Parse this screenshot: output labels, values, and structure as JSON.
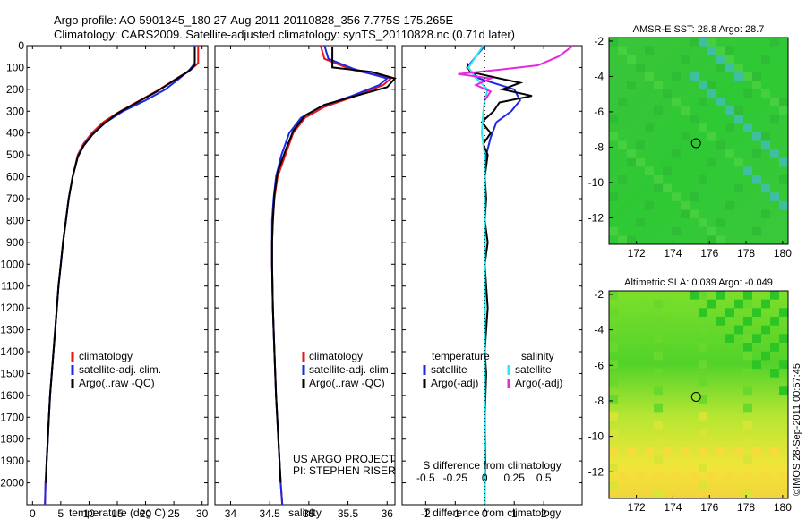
{
  "header": {
    "line1": "Argo profile: AO 5901345_180 27-Aug-2011 20110828_356 7.775S 175.265E",
    "line2": "Climatology: CARS2009. Satellite-adjusted climatology: synTS_20110828.nc (0.71d later)"
  },
  "stamp": "©IMOS 28-Sep-2011 00:57:45",
  "colors": {
    "climatology": "#e8141c",
    "satellite": "#1c28e6",
    "argo": "#000000",
    "salinity_satellite": "#2ee8ee",
    "salinity_argo": "#e628e0"
  },
  "chart_data": [
    {
      "type": "line",
      "xlabel": "temperature (deg C)",
      "ylabel": "",
      "xlim": [
        -1,
        31
      ],
      "ylim": [
        2100,
        0
      ],
      "xticks": [
        0,
        5,
        10,
        15,
        20,
        25,
        30
      ],
      "yticks": [
        0,
        100,
        200,
        300,
        400,
        500,
        600,
        700,
        800,
        900,
        1000,
        1100,
        1200,
        1300,
        1400,
        1500,
        1600,
        1700,
        1800,
        1900,
        2000
      ],
      "legend": {
        "position": "center-left",
        "entries": [
          "climatology",
          "satellite-adj. clim.",
          "Argo(..raw -QC)"
        ]
      },
      "series": [
        {
          "name": "climatology",
          "color": "#e8141c",
          "points": [
            [
              29.3,
              0
            ],
            [
              29.3,
              80
            ],
            [
              28.0,
              110
            ],
            [
              25.5,
              150
            ],
            [
              22.5,
              200
            ],
            [
              19,
              250
            ],
            [
              15.5,
              300
            ],
            [
              12.5,
              350
            ],
            [
              10.5,
              400
            ],
            [
              9,
              450
            ],
            [
              8,
              500
            ],
            [
              7.1,
              600
            ],
            [
              6.4,
              700
            ],
            [
              5.9,
              800
            ],
            [
              5.4,
              900
            ],
            [
              5.0,
              1000
            ],
            [
              4.6,
              1100
            ],
            [
              4.3,
              1200
            ],
            [
              4.0,
              1300
            ],
            [
              3.7,
              1400
            ],
            [
              3.4,
              1500
            ],
            [
              3.1,
              1600
            ],
            [
              2.9,
              1700
            ],
            [
              2.7,
              1800
            ],
            [
              2.5,
              1900
            ],
            [
              2.3,
              2000
            ],
            [
              2.2,
              2100
            ]
          ]
        },
        {
          "name": "satellite-adj. clim.",
          "color": "#1c28e6",
          "points": [
            [
              28.7,
              0
            ],
            [
              28.7,
              80
            ],
            [
              27.8,
              110
            ],
            [
              26,
              150
            ],
            [
              23.5,
              200
            ],
            [
              20,
              250
            ],
            [
              16,
              300
            ],
            [
              13,
              350
            ],
            [
              10.8,
              400
            ],
            [
              9.2,
              450
            ],
            [
              8.1,
              500
            ],
            [
              7.1,
              600
            ],
            [
              6.4,
              700
            ],
            [
              5.9,
              800
            ],
            [
              5.4,
              900
            ],
            [
              5.0,
              1000
            ],
            [
              4.6,
              1100
            ],
            [
              4.3,
              1200
            ],
            [
              4.0,
              1300
            ],
            [
              3.7,
              1400
            ],
            [
              3.4,
              1500
            ],
            [
              3.1,
              1600
            ],
            [
              2.9,
              1700
            ],
            [
              2.7,
              1800
            ],
            [
              2.5,
              1900
            ],
            [
              2.3,
              2000
            ],
            [
              2.2,
              2100
            ]
          ]
        },
        {
          "name": "Argo(..raw -QC)",
          "color": "#000000",
          "points": [
            [
              28.7,
              5
            ],
            [
              28.7,
              90
            ],
            [
              27.5,
              120
            ],
            [
              25,
              160
            ],
            [
              22,
              210
            ],
            [
              18.5,
              260
            ],
            [
              15,
              310
            ],
            [
              12.5,
              360
            ],
            [
              10.5,
              410
            ],
            [
              9,
              460
            ],
            [
              8,
              510
            ],
            [
              7.1,
              600
            ],
            [
              6.4,
              700
            ],
            [
              5.9,
              800
            ],
            [
              5.4,
              900
            ],
            [
              5.0,
              1000
            ],
            [
              4.6,
              1100
            ],
            [
              4.3,
              1200
            ],
            [
              4.0,
              1300
            ],
            [
              3.7,
              1400
            ],
            [
              3.4,
              1500
            ],
            [
              3.1,
              1600
            ],
            [
              2.9,
              1700
            ],
            [
              2.7,
              1800
            ],
            [
              2.5,
              1900
            ],
            [
              2.4,
              2000
            ]
          ]
        }
      ]
    },
    {
      "type": "line",
      "xlabel": "salinity",
      "ylabel": "",
      "xlim": [
        33.8,
        36.1
      ],
      "ylim": [
        2100,
        0
      ],
      "xticks": [
        34,
        34.5,
        35,
        35.5,
        36
      ],
      "legend": {
        "position": "center-right",
        "entries": [
          "climatology",
          "satellite-adj. clim.",
          "Argo(..raw -QC)"
        ]
      },
      "annotations": [
        "US ARGO PROJECT",
        "PI: STEPHEN RISER"
      ],
      "series": [
        {
          "name": "climatology",
          "color": "#e8141c",
          "points": [
            [
              35.15,
              0
            ],
            [
              35.2,
              60
            ],
            [
              35.55,
              110
            ],
            [
              36.05,
              150
            ],
            [
              35.95,
              180
            ],
            [
              35.6,
              230
            ],
            [
              35.2,
              280
            ],
            [
              34.95,
              330
            ],
            [
              34.8,
              400
            ],
            [
              34.7,
              500
            ],
            [
              34.6,
              600
            ],
            [
              34.56,
              700
            ],
            [
              34.54,
              800
            ],
            [
              34.53,
              900
            ],
            [
              34.53,
              1000
            ],
            [
              34.54,
              1200
            ],
            [
              34.56,
              1400
            ],
            [
              34.58,
              1600
            ],
            [
              34.61,
              1800
            ],
            [
              34.64,
              2000
            ],
            [
              34.66,
              2100
            ]
          ]
        },
        {
          "name": "satellite-adj. clim.",
          "color": "#1c28e6",
          "points": [
            [
              35.2,
              0
            ],
            [
              35.25,
              60
            ],
            [
              35.6,
              110
            ],
            [
              36.0,
              150
            ],
            [
              35.9,
              180
            ],
            [
              35.55,
              230
            ],
            [
              35.15,
              280
            ],
            [
              34.9,
              330
            ],
            [
              34.75,
              400
            ],
            [
              34.65,
              500
            ],
            [
              34.58,
              600
            ],
            [
              34.55,
              700
            ],
            [
              34.53,
              800
            ],
            [
              34.53,
              900
            ],
            [
              34.53,
              1000
            ],
            [
              34.54,
              1200
            ],
            [
              34.56,
              1400
            ],
            [
              34.58,
              1600
            ],
            [
              34.61,
              1800
            ],
            [
              34.64,
              2000
            ],
            [
              34.66,
              2100
            ]
          ]
        },
        {
          "name": "Argo(..raw -QC)",
          "color": "#000000",
          "points": [
            [
              35.3,
              5
            ],
            [
              35.3,
              100
            ],
            [
              35.8,
              120
            ],
            [
              36.1,
              150
            ],
            [
              36.0,
              190
            ],
            [
              35.6,
              230
            ],
            [
              35.2,
              270
            ],
            [
              34.95,
              320
            ],
            [
              34.8,
              390
            ],
            [
              34.7,
              480
            ],
            [
              34.6,
              580
            ],
            [
              34.56,
              680
            ],
            [
              34.54,
              800
            ],
            [
              34.53,
              900
            ],
            [
              34.53,
              1000
            ],
            [
              34.54,
              1200
            ],
            [
              34.56,
              1400
            ],
            [
              34.58,
              1600
            ],
            [
              34.61,
              1800
            ],
            [
              34.64,
              2000
            ]
          ]
        }
      ]
    },
    {
      "type": "line",
      "xlabel": "T difference from climatology",
      "xlabel2": "S difference from climatology",
      "xlim": [
        -2.8,
        3.3
      ],
      "ylim": [
        2100,
        0
      ],
      "xticks": [
        -2,
        -1,
        0,
        1,
        2
      ],
      "xticks_top_values": [
        -0.5,
        -0.25,
        0,
        0.25,
        0.5
      ],
      "xticks_top_labels": [
        "-0.5",
        "-0.25",
        "0",
        "0.25",
        "0.5"
      ],
      "legend": {
        "position": "lower-center",
        "groups": [
          {
            "title": "temperature",
            "entries": [
              "satellite",
              "Argo(-adj)"
            ]
          },
          {
            "title": "salinity",
            "entries": [
              "satellite",
              "Argo(-adj)"
            ]
          }
        ]
      },
      "series": [
        {
          "name": "satellite",
          "group": "temperature",
          "color": "#1c28e6",
          "points": [
            [
              0,
              0
            ],
            [
              -0.6,
              100
            ],
            [
              -0.2,
              150
            ],
            [
              1.0,
              200
            ],
            [
              1.2,
              250
            ],
            [
              0.9,
              300
            ],
            [
              0.4,
              350
            ],
            [
              0.2,
              420
            ],
            [
              0.05,
              500
            ],
            [
              0,
              600
            ],
            [
              0,
              800
            ],
            [
              0,
              1000
            ],
            [
              0,
              1500
            ],
            [
              0,
              2100
            ]
          ]
        },
        {
          "name": "Argo(-adj)",
          "group": "temperature",
          "color": "#000000",
          "points": [
            [
              -0.6,
              80
            ],
            [
              -0.5,
              120
            ],
            [
              0.5,
              150
            ],
            [
              1.2,
              170
            ],
            [
              0.6,
              200
            ],
            [
              1.6,
              230
            ],
            [
              0.5,
              260
            ],
            [
              0.3,
              300
            ],
            [
              -0.1,
              350
            ],
            [
              0.2,
              400
            ],
            [
              -0.05,
              450
            ],
            [
              0.1,
              500
            ],
            [
              0,
              600
            ],
            [
              0.05,
              700
            ],
            [
              0,
              800
            ],
            [
              0.1,
              900
            ],
            [
              0,
              1000
            ],
            [
              0.05,
              1100
            ],
            [
              0.1,
              1200
            ],
            [
              0.05,
              1300
            ],
            [
              0,
              1400
            ],
            [
              0.05,
              1500
            ],
            [
              0,
              1700
            ],
            [
              0.02,
              1900
            ],
            [
              0,
              2000
            ]
          ]
        },
        {
          "name": "satellite",
          "group": "salinity",
          "color": "#2ee8ee",
          "points": [
            [
              -0.05,
              0
            ],
            [
              -0.55,
              100
            ],
            [
              -0.3,
              150
            ],
            [
              0.1,
              200
            ],
            [
              0.0,
              250
            ],
            [
              -0.05,
              300
            ],
            [
              -0.1,
              400
            ],
            [
              0,
              500
            ],
            [
              0,
              800
            ],
            [
              0,
              1000
            ],
            [
              0,
              1500
            ],
            [
              0,
              2100
            ]
          ]
        },
        {
          "name": "Argo(-adj)",
          "group": "salinity",
          "color": "#e628e0",
          "points": [
            [
              3.0,
              0
            ],
            [
              2.5,
              50
            ],
            [
              1.8,
              90
            ],
            [
              0.5,
              110
            ],
            [
              -0.9,
              130
            ],
            [
              0.2,
              150
            ],
            [
              -0.3,
              180
            ],
            [
              0.2,
              210
            ],
            [
              0,
              250
            ]
          ]
        }
      ]
    },
    {
      "type": "heatmap",
      "title": "AMSR-E SST: 28.8 Argo: 28.7",
      "xlim": [
        170.5,
        180.3
      ],
      "ylim": [
        -13.5,
        -1.8
      ],
      "xticks": [
        172,
        174,
        176,
        178,
        180
      ],
      "yticks": [
        -2,
        -4,
        -6,
        -8,
        -10,
        -12
      ],
      "marker": {
        "lon": 175.265,
        "lat": -7.775
      }
    },
    {
      "type": "heatmap",
      "title": "Altimetric SLA: 0.039 Argo: -0.049",
      "xlim": [
        170.5,
        180.3
      ],
      "ylim": [
        -13.5,
        -1.8
      ],
      "xticks": [
        172,
        174,
        176,
        178,
        180
      ],
      "yticks": [
        -2,
        -4,
        -6,
        -8,
        -10,
        -12
      ],
      "marker": {
        "lon": 175.265,
        "lat": -7.775
      }
    }
  ]
}
